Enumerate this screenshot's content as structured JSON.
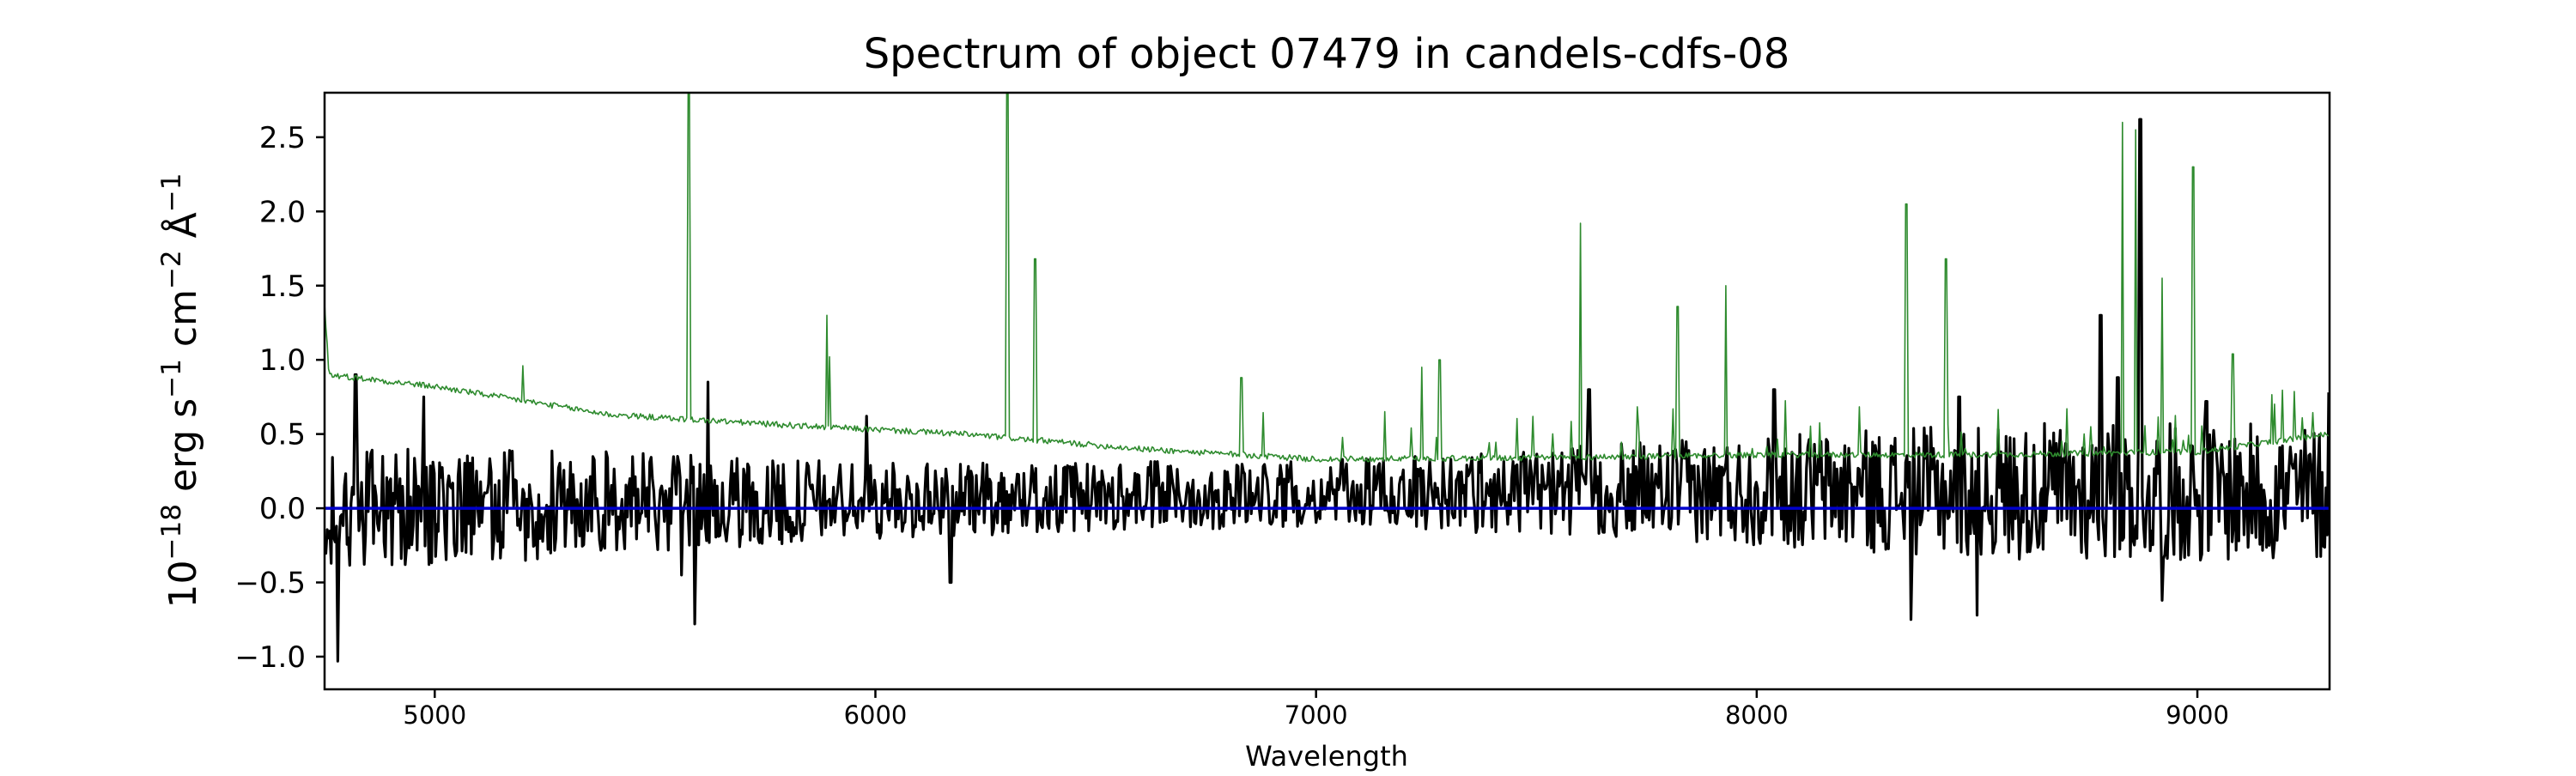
{
  "chart_data": {
    "type": "line",
    "title": "Spectrum of object 07479 in candels-cdfs-08",
    "xlabel": "Wavelength",
    "ylabel": {
      "base": "10",
      "base_exp": "−18",
      "unit1": "erg s",
      "unit1_exp": "−1",
      "unit2": "cm",
      "unit2_exp": "−2",
      "unit3": "Å",
      "unit3_exp": "−1"
    },
    "xlim": [
      4750,
      9300
    ],
    "ylim": [
      -1.22,
      2.8
    ],
    "xticks": [
      {
        "value": 5000,
        "label": "5000"
      },
      {
        "value": 6000,
        "label": "6000"
      },
      {
        "value": 7000,
        "label": "7000"
      },
      {
        "value": 8000,
        "label": "8000"
      },
      {
        "value": 9000,
        "label": "9000"
      }
    ],
    "yticks": [
      {
        "value": -1.0,
        "label": "−1.0"
      },
      {
        "value": -0.5,
        "label": "−0.5"
      },
      {
        "value": 0.0,
        "label": "0.0"
      },
      {
        "value": 0.5,
        "label": "0.5"
      },
      {
        "value": 1.0,
        "label": "1.0"
      },
      {
        "value": 1.5,
        "label": "1.5"
      },
      {
        "value": 2.0,
        "label": "2.0"
      },
      {
        "value": 2.5,
        "label": "2.5"
      }
    ],
    "grid": false,
    "legend": "none",
    "series": [
      {
        "role": "flux",
        "color": "#000000",
        "continuum": [
          [
            4750,
            0.0
          ],
          [
            6000,
            0.05
          ],
          [
            7000,
            0.1
          ],
          [
            8000,
            0.12
          ],
          [
            9300,
            0.1
          ]
        ],
        "noise_envelope": [
          [
            4750,
            0.48
          ],
          [
            5400,
            0.42
          ],
          [
            6000,
            0.3
          ],
          [
            7000,
            0.26
          ],
          [
            7600,
            0.36
          ],
          [
            8300,
            0.5
          ],
          [
            8700,
            0.55
          ],
          [
            9300,
            0.55
          ]
        ],
        "peaks": [
          [
            4780,
            -1.03
          ],
          [
            4820,
            0.9
          ],
          [
            4975,
            0.75
          ],
          [
            5560,
            -0.45
          ],
          [
            5590,
            -0.78
          ],
          [
            5620,
            0.85
          ],
          [
            5980,
            0.62
          ],
          [
            6170,
            -0.5
          ],
          [
            7620,
            0.8
          ],
          [
            8040,
            0.8
          ],
          [
            8350,
            -0.75
          ],
          [
            8460,
            0.75
          ],
          [
            8500,
            -0.72
          ],
          [
            8780,
            1.3
          ],
          [
            8820,
            0.88
          ],
          [
            8870,
            2.62
          ],
          [
            8920,
            -0.62
          ],
          [
            9020,
            0.72
          ],
          [
            9300,
            0.78
          ]
        ]
      },
      {
        "role": "error",
        "color": "#2e8b2e",
        "continuum": [
          [
            4750,
            1.38
          ],
          [
            4760,
            0.9
          ],
          [
            5000,
            0.82
          ],
          [
            5400,
            0.63
          ],
          [
            5800,
            0.56
          ],
          [
            6200,
            0.5
          ],
          [
            6600,
            0.4
          ],
          [
            7000,
            0.33
          ],
          [
            7500,
            0.34
          ],
          [
            8000,
            0.36
          ],
          [
            8500,
            0.36
          ],
          [
            9000,
            0.38
          ],
          [
            9300,
            0.5
          ]
        ],
        "peaks": [
          [
            5200,
            0.96
          ],
          [
            5577,
            2.8
          ],
          [
            5890,
            1.3
          ],
          [
            5896,
            1.02
          ],
          [
            6300,
            2.8
          ],
          [
            6363,
            1.68
          ],
          [
            6830,
            0.88
          ],
          [
            7240,
            0.95
          ],
          [
            7280,
            1.0
          ],
          [
            7600,
            1.92
          ],
          [
            7820,
            1.36
          ],
          [
            7930,
            1.5
          ],
          [
            8340,
            2.05
          ],
          [
            8430,
            1.68
          ],
          [
            8830,
            2.6
          ],
          [
            8860,
            2.55
          ],
          [
            8920,
            1.55
          ],
          [
            8990,
            2.3
          ],
          [
            9080,
            1.04
          ]
        ]
      },
      {
        "role": "zero",
        "color": "#0000cc",
        "value": 0.0
      }
    ]
  }
}
